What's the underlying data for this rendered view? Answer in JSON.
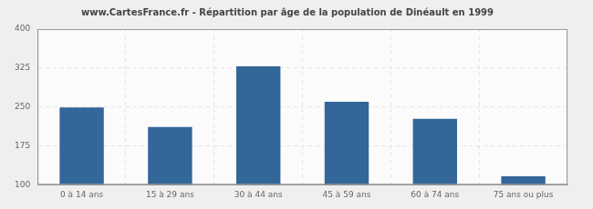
{
  "chart_data": {
    "type": "bar",
    "title": "www.CartesFrance.fr - Répartition par âge de la population de Dinéault en 1999",
    "categories": [
      "0 à 14 ans",
      "15 à 29 ans",
      "30 à 44 ans",
      "45 à 59 ans",
      "60 à 74 ans",
      "75 ans ou plus"
    ],
    "values": [
      249,
      211,
      328,
      260,
      227,
      116
    ],
    "color": "#336699",
    "ylim": [
      100,
      400
    ],
    "yticks": [
      100,
      175,
      250,
      325,
      400
    ],
    "grid": true
  }
}
